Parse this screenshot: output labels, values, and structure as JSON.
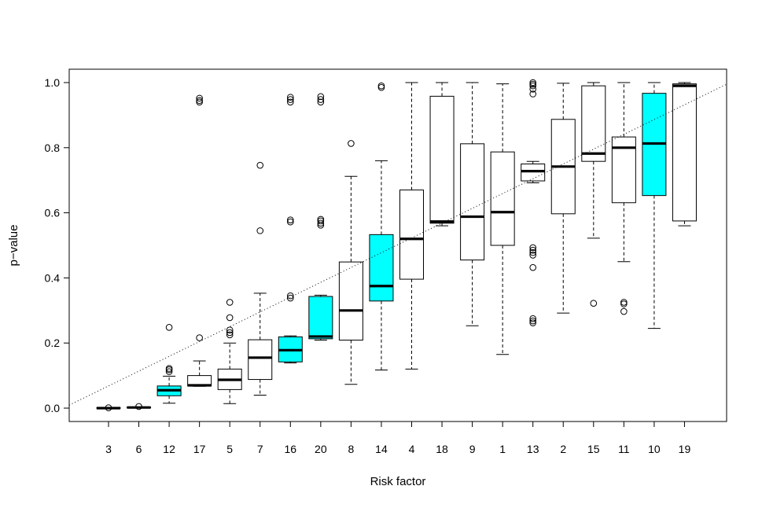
{
  "chart_data": {
    "type": "boxplot",
    "title": "",
    "xlabel": "Risk factor",
    "ylabel": "p−value",
    "ylim": [
      -0.04,
      1.04
    ],
    "yticks": [
      "0.0",
      "0.2",
      "0.4",
      "0.6",
      "0.8",
      "1.0"
    ],
    "reference_line": {
      "style": "dotted",
      "from": [
        0,
        0
      ],
      "to": [
        1,
        1
      ]
    },
    "colors": {
      "highlight": "#00FFFF",
      "default": "#FFFFFF",
      "stroke": "#000000"
    },
    "boxes": [
      {
        "label": "3",
        "highlight": false,
        "min": 0.0,
        "q1": 0.0,
        "median": 0.0,
        "q3": 0.001,
        "max": 0.002,
        "outliers": [
          0.001
        ]
      },
      {
        "label": "6",
        "highlight": false,
        "min": 0.0,
        "q1": 0.001,
        "median": 0.002,
        "q3": 0.003,
        "max": 0.004,
        "outliers": [
          0.005
        ]
      },
      {
        "label": "12",
        "highlight": true,
        "min": 0.015,
        "q1": 0.038,
        "median": 0.055,
        "q3": 0.068,
        "max": 0.098,
        "outliers": [
          0.112,
          0.118,
          0.122,
          0.248
        ]
      },
      {
        "label": "17",
        "highlight": false,
        "min": 0.067,
        "q1": 0.068,
        "median": 0.07,
        "q3": 0.1,
        "max": 0.145,
        "outliers": [
          0.216,
          0.94,
          0.945,
          0.952
        ]
      },
      {
        "label": "5",
        "highlight": false,
        "min": 0.014,
        "q1": 0.057,
        "median": 0.087,
        "q3": 0.12,
        "max": 0.2,
        "outliers": [
          0.225,
          0.232,
          0.24,
          0.278,
          0.325
        ]
      },
      {
        "label": "7",
        "highlight": false,
        "min": 0.04,
        "q1": 0.088,
        "median": 0.155,
        "q3": 0.21,
        "max": 0.353,
        "outliers": [
          0.545,
          0.746
        ]
      },
      {
        "label": "16",
        "highlight": true,
        "min": 0.139,
        "q1": 0.142,
        "median": 0.178,
        "q3": 0.219,
        "max": 0.222,
        "outliers": [
          0.338,
          0.345,
          0.572,
          0.578,
          0.94,
          0.948,
          0.955
        ]
      },
      {
        "label": "20",
        "highlight": true,
        "min": 0.209,
        "q1": 0.213,
        "median": 0.22,
        "q3": 0.343,
        "max": 0.347,
        "outliers": [
          0.562,
          0.568,
          0.575,
          0.58,
          0.94,
          0.948,
          0.957
        ]
      },
      {
        "label": "8",
        "highlight": false,
        "min": 0.073,
        "q1": 0.209,
        "median": 0.3,
        "q3": 0.449,
        "max": 0.712,
        "outliers": [
          0.813
        ]
      },
      {
        "label": "14",
        "highlight": true,
        "min": 0.117,
        "q1": 0.329,
        "median": 0.375,
        "q3": 0.533,
        "max": 0.76,
        "outliers": [
          0.985,
          0.99
        ]
      },
      {
        "label": "4",
        "highlight": false,
        "min": 0.12,
        "q1": 0.396,
        "median": 0.52,
        "q3": 0.67,
        "max": 1.0,
        "outliers": []
      },
      {
        "label": "18",
        "highlight": false,
        "min": 0.56,
        "q1": 0.568,
        "median": 0.573,
        "q3": 0.958,
        "max": 1.0,
        "outliers": []
      },
      {
        "label": "9",
        "highlight": false,
        "min": 0.253,
        "q1": 0.455,
        "median": 0.588,
        "q3": 0.812,
        "max": 1.0,
        "outliers": []
      },
      {
        "label": "1",
        "highlight": false,
        "min": 0.165,
        "q1": 0.5,
        "median": 0.602,
        "q3": 0.787,
        "max": 0.996,
        "outliers": []
      },
      {
        "label": "13",
        "highlight": false,
        "min": 0.692,
        "q1": 0.698,
        "median": 0.728,
        "q3": 0.75,
        "max": 0.758,
        "outliers": [
          0.262,
          0.268,
          0.275,
          0.432,
          0.47,
          0.478,
          0.485,
          0.493,
          0.965,
          0.98,
          0.99,
          0.995,
          1.0
        ]
      },
      {
        "label": "2",
        "highlight": false,
        "min": 0.292,
        "q1": 0.597,
        "median": 0.742,
        "q3": 0.887,
        "max": 0.998,
        "outliers": []
      },
      {
        "label": "15",
        "highlight": false,
        "min": 0.522,
        "q1": 0.758,
        "median": 0.782,
        "q3": 0.99,
        "max": 1.0,
        "outliers": [
          0.322
        ]
      },
      {
        "label": "11",
        "highlight": false,
        "min": 0.45,
        "q1": 0.631,
        "median": 0.8,
        "q3": 0.833,
        "max": 1.0,
        "outliers": [
          0.297,
          0.32,
          0.325
        ]
      },
      {
        "label": "10",
        "highlight": true,
        "min": 0.245,
        "q1": 0.653,
        "median": 0.813,
        "q3": 0.967,
        "max": 1.0,
        "outliers": []
      },
      {
        "label": "19",
        "highlight": false,
        "min": 0.56,
        "q1": 0.575,
        "median": 0.99,
        "q3": 0.996,
        "max": 1.0,
        "outliers": []
      }
    ]
  }
}
